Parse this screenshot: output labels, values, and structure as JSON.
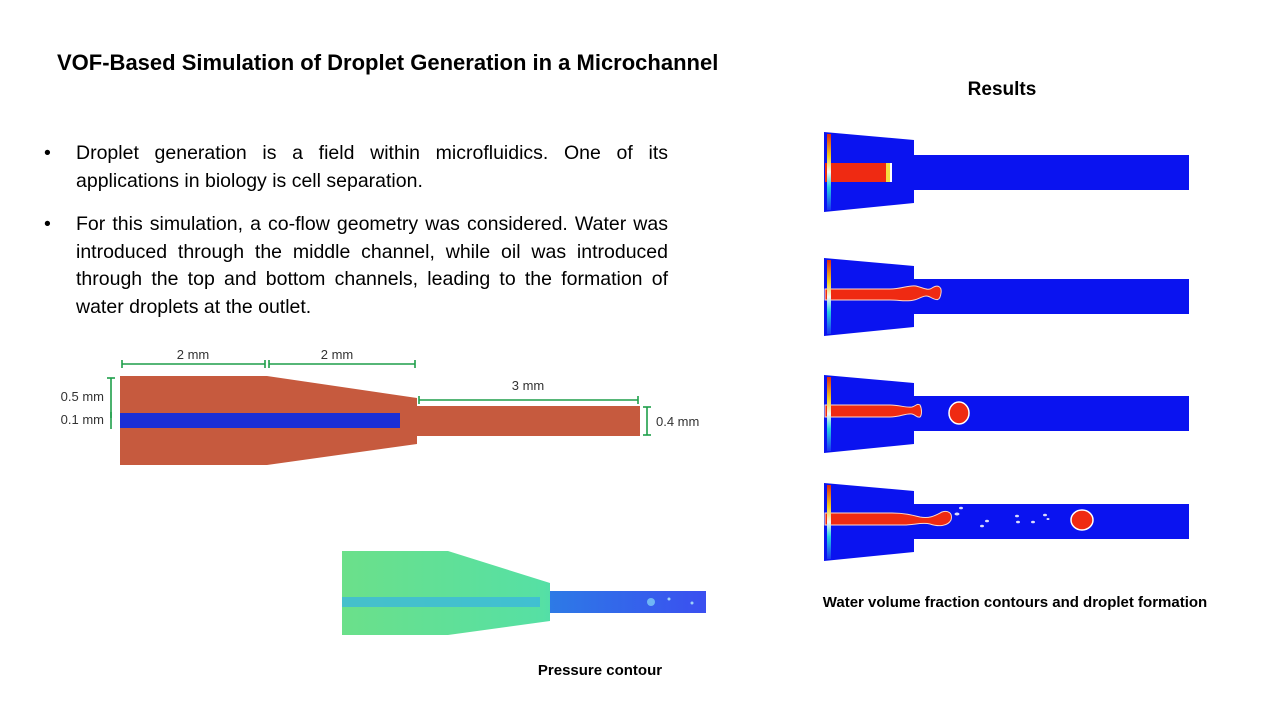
{
  "slide": {
    "title": "VOF-Based Simulation of Droplet Generation in a Microchannel",
    "bullets": [
      "Droplet generation is a field within microfluidics. One of its applications in biology is cell separation.",
      "For this simulation, a co-flow geometry was considered. Water was introduced through the middle channel, while oil was introduced through the top and bottom channels, leading to the formation of water droplets at the outlet."
    ],
    "bullet_glyph": "•"
  },
  "geometry": {
    "dim_inlet_length": "2 mm",
    "dim_taper_length": "2 mm",
    "dim_outlet_length": "3 mm",
    "dim_half_height": "0.5 mm",
    "dim_inner_channel": "0.1 mm",
    "dim_outlet_height": "0.4 mm",
    "colors": {
      "oil": "#c65a3e",
      "water": "#1a2fd6",
      "dimension": "#1e9e4a"
    }
  },
  "pressure": {
    "caption": "Pressure contour"
  },
  "results": {
    "title": "Results",
    "caption": "Water volume fraction contours and droplet formation",
    "colors": {
      "background": "#0a13f0",
      "water": "#ef2a12"
    },
    "frame_count": 4
  }
}
